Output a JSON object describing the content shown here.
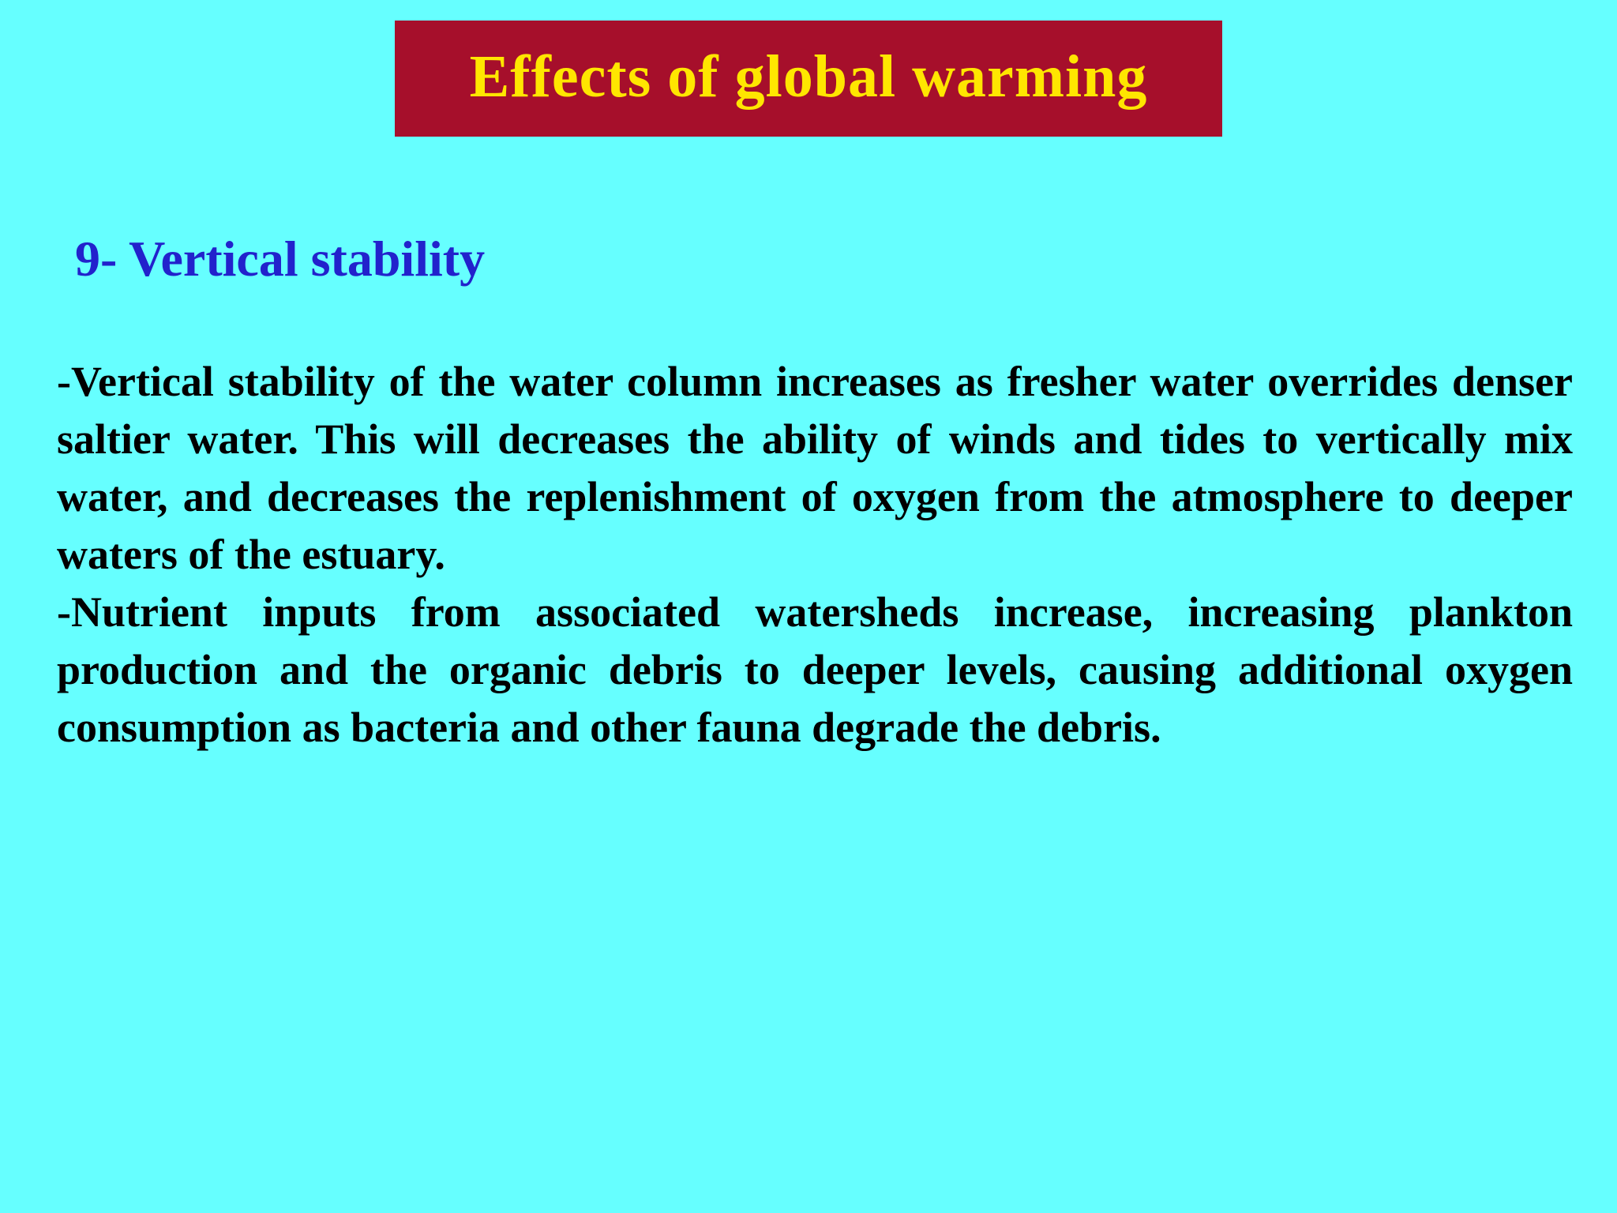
{
  "slide": {
    "title": "Effects of global warming",
    "heading": "9- Vertical stability",
    "paragraphs": [
      "-Vertical stability of the water column increases as fresher water overrides denser saltier water. This will decreases the ability of winds and tides to vertically mix water, and decreases the replenishment of oxygen from the atmosphere to deeper waters of the estuary.",
      "-Nutrient inputs from associated watersheds increase, increasing plankton production and the organic debris to deeper levels, causing additional oxygen consumption as bacteria and other fauna degrade the debris."
    ],
    "colors": {
      "background": "#66FFFF",
      "banner": "#A60F2B",
      "title_text": "#FFE600",
      "heading_text": "#2222CC",
      "body_text": "#000000"
    }
  }
}
